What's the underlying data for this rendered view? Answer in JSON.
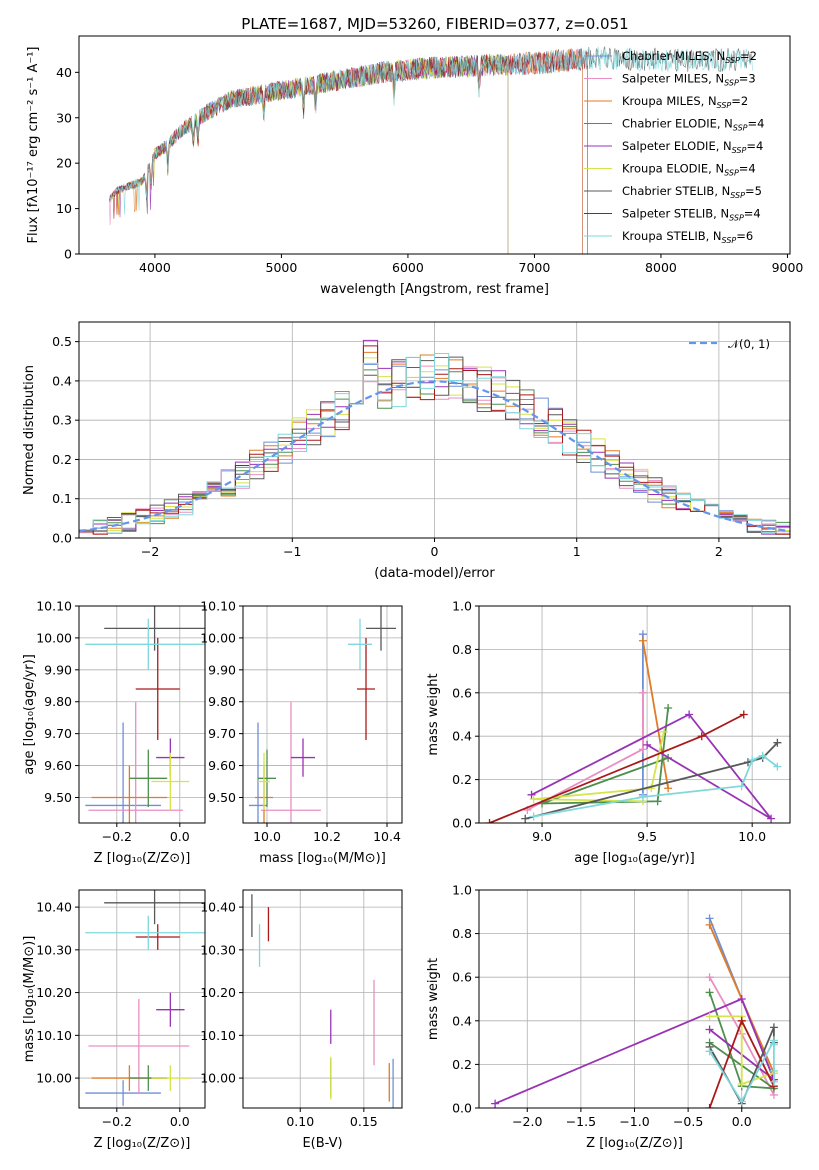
{
  "figure_title": "PLATE=1687, MJD=53260, FIBERID=0377, z=0.051",
  "colors": {
    "Chabrier MILES": "#6f8fd8",
    "Salpeter MILES": "#e98fc3",
    "Kroupa MILES": "#e07b26",
    "Chabrier ELODIE": "#4e8f4e",
    "Salpeter ELODIE": "#9933b5",
    "Kroupa ELODIE": "#d7e34a",
    "Chabrier STELIB": "#595959",
    "Salpeter STELIB": "#aa1a1a",
    "Kroupa STELIB": "#7ed8dc",
    "normal_curve": "#6495ed"
  },
  "chart_data": [
    {
      "id": "spectrum",
      "type": "line",
      "xlabel": "wavelength [Angstrom, rest frame]",
      "ylabel": "Flux [fλ10⁻¹⁷ erg cm⁻² s⁻¹ A⁻¹]",
      "xlim": [
        3400,
        9020
      ],
      "ylim": [
        0,
        48
      ],
      "xticks": [
        4000,
        5000,
        6000,
        7000,
        8000,
        9000
      ],
      "yticks": [
        0,
        10,
        20,
        30,
        40
      ],
      "legend_position": "upper right",
      "legend": [
        {
          "name": "Chabrier MILES",
          "label": "Chabrier MILES, N",
          "sub": "SSP",
          "tail": "=2",
          "color": "#6f8fd8"
        },
        {
          "name": "Salpeter MILES",
          "label": "Salpeter MILES, N",
          "sub": "SSP",
          "tail": "=3",
          "color": "#e98fc3"
        },
        {
          "name": "Kroupa MILES",
          "label": "Kroupa MILES, N",
          "sub": "SSP",
          "tail": "=2",
          "color": "#e07b26"
        },
        {
          "name": "Chabrier ELODIE",
          "label": "Chabrier ELODIE, N",
          "sub": "SSP",
          "tail": "=4",
          "color": "#4e8f4e"
        },
        {
          "name": "Salpeter ELODIE",
          "label": "Salpeter ELODIE, N",
          "sub": "SSP",
          "tail": "=4",
          "color": "#9933b5"
        },
        {
          "name": "Kroupa ELODIE",
          "label": "Kroupa ELODIE, N",
          "sub": "SSP",
          "tail": "=4",
          "color": "#d7e34a"
        },
        {
          "name": "Chabrier STELIB",
          "label": "Chabrier STELIB, N",
          "sub": "SSP",
          "tail": "=5",
          "color": "#595959"
        },
        {
          "name": "Salpeter STELIB",
          "label": "Salpeter STELIB, N",
          "sub": "SSP",
          "tail": "=4",
          "color": "#aa1a1a"
        },
        {
          "name": "Kroupa STELIB",
          "label": "Kroupa STELIB, N",
          "sub": "SSP",
          "tail": "=6",
          "color": "#7ed8dc"
        }
      ],
      "continuum": [
        [
          3640,
          12
        ],
        [
          3700,
          14
        ],
        [
          3800,
          15
        ],
        [
          3900,
          16
        ],
        [
          4000,
          22
        ],
        [
          4100,
          24
        ],
        [
          4200,
          27
        ],
        [
          4400,
          31
        ],
        [
          4600,
          34
        ],
        [
          4800,
          35
        ],
        [
          5000,
          36
        ],
        [
          5200,
          37
        ],
        [
          5400,
          38
        ],
        [
          5600,
          39
        ],
        [
          5800,
          40
        ],
        [
          6000,
          40.5
        ],
        [
          6200,
          41
        ],
        [
          6400,
          41.2
        ],
        [
          6600,
          41.5
        ],
        [
          6800,
          41.8
        ],
        [
          7000,
          42
        ],
        [
          7200,
          42.5
        ],
        [
          7400,
          43
        ],
        [
          7600,
          43.2
        ],
        [
          7800,
          42.8
        ],
        [
          8000,
          42.7
        ],
        [
          8200,
          42.6
        ],
        [
          8400,
          42.7
        ],
        [
          8600,
          42.8
        ],
        [
          8720,
          42.9
        ]
      ],
      "series_ends": {
        "Chabrier MILES": 7380,
        "Salpeter MILES": 7380,
        "Kroupa MILES": 7380,
        "Chabrier ELODIE": 6790,
        "Salpeter ELODIE": 6790,
        "Kroupa ELODIE": 6790,
        "Chabrier STELIB": 8730,
        "Salpeter STELIB": 7420,
        "Kroupa STELIB": 8730
      }
    },
    {
      "id": "residuals",
      "type": "step",
      "xlabel": "(data-model)/error",
      "ylabel": "Normed distribution",
      "xlim": [
        -2.5,
        2.5
      ],
      "ylim": [
        0,
        0.55
      ],
      "xticks": [
        -2,
        -1,
        0,
        1,
        2
      ],
      "yticks": [
        0.0,
        0.1,
        0.2,
        0.3,
        0.4,
        0.5
      ],
      "legend": [
        {
          "label": "𝒩(0, 1)",
          "color": "#6495ed",
          "style": "dashed"
        }
      ],
      "bin_width": 0.1,
      "bins_start": -2.5
    },
    {
      "id": "age-vs-Z",
      "type": "errorbar",
      "xlabel": "Z [log₁₀(Z/Z⊙)]",
      "ylabel": "age  [log₁₀(age/yr)]",
      "xlim": [
        -0.32,
        0.08
      ],
      "ylim": [
        9.42,
        10.1
      ],
      "xticks": [
        -0.2,
        0.0
      ],
      "yticks": [
        9.5,
        9.6,
        9.7,
        9.8,
        9.9,
        10.0,
        10.1
      ],
      "points": [
        {
          "name": "Chabrier MILES",
          "x": -0.18,
          "y": 9.475,
          "xerr": 0.12,
          "yerr": 0.26
        },
        {
          "name": "Salpeter MILES",
          "x": -0.14,
          "y": 9.46,
          "xerr": 0.15,
          "yerr": 0.34
        },
        {
          "name": "Kroupa MILES",
          "x": -0.16,
          "y": 9.5,
          "xerr": 0.12,
          "yerr": 0.1
        },
        {
          "name": "Chabrier ELODIE",
          "x": -0.1,
          "y": 9.56,
          "xerr": 0.06,
          "yerr": 0.09
        },
        {
          "name": "Salpeter ELODIE",
          "x": -0.03,
          "y": 9.625,
          "xerr": 0.045,
          "yerr": 0.06
        },
        {
          "name": "Kroupa ELODIE",
          "x": -0.03,
          "y": 9.55,
          "xerr": 0.06,
          "yerr": 0.09
        },
        {
          "name": "Chabrier STELIB",
          "x": -0.08,
          "y": 10.03,
          "xerr": 0.16,
          "yerr": 0.07
        },
        {
          "name": "Salpeter STELIB",
          "x": -0.07,
          "y": 9.84,
          "xerr": 0.07,
          "yerr": 0.16
        },
        {
          "name": "Kroupa STELIB",
          "x": -0.1,
          "y": 9.98,
          "xerr": 0.2,
          "yerr": 0.08
        }
      ]
    },
    {
      "id": "age-vs-mass",
      "type": "errorbar",
      "xlabel": "mass [log₁₀(M/M⊙)]",
      "ylabel": "",
      "xlim": [
        9.92,
        10.45
      ],
      "ylim": [
        9.42,
        10.1
      ],
      "xticks": [
        10.0,
        10.2,
        10.4
      ],
      "yticks": [
        9.5,
        9.6,
        9.7,
        9.8,
        9.9,
        10.0,
        10.1
      ],
      "points": [
        {
          "name": "Chabrier MILES",
          "x": 9.97,
          "y": 9.475,
          "xerr": 0.03,
          "yerr": 0.26
        },
        {
          "name": "Salpeter MILES",
          "x": 10.08,
          "y": 9.46,
          "xerr": 0.1,
          "yerr": 0.34
        },
        {
          "name": "Kroupa MILES",
          "x": 9.99,
          "y": 9.5,
          "xerr": 0.03,
          "yerr": 0.1
        },
        {
          "name": "Chabrier ELODIE",
          "x": 10.0,
          "y": 9.56,
          "xerr": 0.03,
          "yerr": 0.09
        },
        {
          "name": "Salpeter ELODIE",
          "x": 10.12,
          "y": 9.625,
          "xerr": 0.04,
          "yerr": 0.06
        },
        {
          "name": "Kroupa ELODIE",
          "x": 9.99,
          "y": 9.55,
          "xerr": 0.02,
          "yerr": 0.09
        },
        {
          "name": "Chabrier STELIB",
          "x": 10.38,
          "y": 10.03,
          "xerr": 0.05,
          "yerr": 0.07
        },
        {
          "name": "Salpeter STELIB",
          "x": 10.33,
          "y": 9.84,
          "xerr": 0.03,
          "yerr": 0.16
        },
        {
          "name": "Kroupa STELIB",
          "x": 10.31,
          "y": 9.98,
          "xerr": 0.04,
          "yerr": 0.08
        }
      ]
    },
    {
      "id": "weight-vs-age",
      "type": "line",
      "xlabel": "age  [log₁₀(age/yr)]",
      "ylabel": "mass weight",
      "xlim": [
        8.7,
        10.18
      ],
      "ylim": [
        0,
        1.0
      ],
      "xticks": [
        9.0,
        9.5,
        10.0
      ],
      "yticks": [
        0.0,
        0.2,
        0.4,
        0.6,
        0.8,
        1.0
      ],
      "series": [
        {
          "name": "Chabrier MILES",
          "x": [
            9.48,
            9.48
          ],
          "y": [
            0.87,
            0.13
          ]
        },
        {
          "name": "Salpeter MILES",
          "x": [
            9.48,
            9.48,
            8.93
          ],
          "y": [
            0.6,
            0.34,
            0.06
          ]
        },
        {
          "name": "Kroupa MILES",
          "x": [
            9.48,
            9.6
          ],
          "y": [
            0.84,
            0.16
          ]
        },
        {
          "name": "Chabrier ELODIE",
          "x": [
            9.6,
            9.55,
            9.0,
            9.6
          ],
          "y": [
            0.53,
            0.1,
            0.09,
            0.3
          ]
        },
        {
          "name": "Salpeter ELODIE",
          "x": [
            8.95,
            9.7,
            10.09,
            9.5
          ],
          "y": [
            0.13,
            0.5,
            0.02,
            0.36
          ]
        },
        {
          "name": "Kroupa ELODIE",
          "x": [
            9.58,
            9.52,
            8.96,
            9.48
          ],
          "y": [
            0.42,
            0.16,
            0.11,
            0.1
          ]
        },
        {
          "name": "Chabrier STELIB",
          "x": [
            8.92,
            9.98,
            10.05,
            10.12
          ],
          "y": [
            0.02,
            0.28,
            0.3,
            0.37
          ]
        },
        {
          "name": "Salpeter STELIB",
          "x": [
            8.75,
            9.76,
            9.96
          ],
          "y": [
            0.0,
            0.4,
            0.5
          ]
        },
        {
          "name": "Kroupa STELIB",
          "x": [
            8.96,
            9.48,
            9.95,
            10.0,
            10.05,
            10.12
          ],
          "y": [
            0.03,
            0.12,
            0.17,
            0.29,
            0.31,
            0.26
          ]
        }
      ]
    },
    {
      "id": "mass-vs-Z",
      "type": "errorbar",
      "xlabel": "Z [log₁₀(Z/Z⊙)]",
      "ylabel": "mass [log₁₀(M/M⊙)]",
      "xlim": [
        -0.32,
        0.08
      ],
      "ylim": [
        9.93,
        10.44
      ],
      "xticks": [
        -0.2,
        0.0
      ],
      "yticks": [
        10.0,
        10.1,
        10.2,
        10.3,
        10.4
      ],
      "points": [
        {
          "name": "Chabrier MILES",
          "x": -0.18,
          "y": 9.965,
          "xerr": 0.12,
          "yerr": 0.03
        },
        {
          "name": "Salpeter MILES",
          "x": -0.13,
          "y": 10.075,
          "xerr": 0.16,
          "yerr": 0.11
        },
        {
          "name": "Kroupa MILES",
          "x": -0.16,
          "y": 10.0,
          "xerr": 0.12,
          "yerr": 0.03
        },
        {
          "name": "Chabrier ELODIE",
          "x": -0.1,
          "y": 10.0,
          "xerr": 0.06,
          "yerr": 0.03
        },
        {
          "name": "Salpeter ELODIE",
          "x": -0.03,
          "y": 10.16,
          "xerr": 0.045,
          "yerr": 0.04
        },
        {
          "name": "Kroupa ELODIE",
          "x": -0.03,
          "y": 10.0,
          "xerr": 0.06,
          "yerr": 0.03
        },
        {
          "name": "Chabrier STELIB",
          "x": -0.08,
          "y": 10.41,
          "xerr": 0.16,
          "yerr": 0.05
        },
        {
          "name": "Salpeter STELIB",
          "x": -0.07,
          "y": 10.33,
          "xerr": 0.07,
          "yerr": 0.03
        },
        {
          "name": "Kroupa STELIB",
          "x": -0.1,
          "y": 10.34,
          "xerr": 0.2,
          "yerr": 0.04
        }
      ]
    },
    {
      "id": "mass-vs-EBV",
      "type": "errorbar",
      "xlabel": "E(B-V)",
      "ylabel": "",
      "xlim": [
        0.055,
        0.18
      ],
      "ylim": [
        9.93,
        10.44
      ],
      "xticks": [
        0.1,
        0.15
      ],
      "yticks": [
        10.0,
        10.1,
        10.2,
        10.3,
        10.4
      ],
      "points": [
        {
          "name": "Chabrier MILES",
          "x": 0.173,
          "y": 9.965,
          "xerr": 0,
          "yerr": 0.08
        },
        {
          "name": "Salpeter MILES",
          "x": 0.158,
          "y": 10.13,
          "xerr": 0,
          "yerr": 0.1
        },
        {
          "name": "Kroupa MILES",
          "x": 0.17,
          "y": 9.99,
          "xerr": 0,
          "yerr": 0.045
        },
        {
          "name": "Chabrier ELODIE",
          "x": 0.124,
          "y": 10.0,
          "xerr": 0,
          "yerr": 0.045
        },
        {
          "name": "Salpeter ELODIE",
          "x": 0.124,
          "y": 10.12,
          "xerr": 0,
          "yerr": 0.04
        },
        {
          "name": "Kroupa ELODIE",
          "x": 0.124,
          "y": 10.0,
          "xerr": 0,
          "yerr": 0.05
        },
        {
          "name": "Chabrier STELIB",
          "x": 0.062,
          "y": 10.38,
          "xerr": 0,
          "yerr": 0.05
        },
        {
          "name": "Salpeter STELIB",
          "x": 0.075,
          "y": 10.36,
          "xerr": 0,
          "yerr": 0.04
        },
        {
          "name": "Kroupa STELIB",
          "x": 0.068,
          "y": 10.31,
          "xerr": 0,
          "yerr": 0.05
        }
      ]
    },
    {
      "id": "weight-vs-Z",
      "type": "line",
      "xlabel": "Z [log₁₀(Z/Z⊙)]",
      "ylabel": "mass weight",
      "xlim": [
        -2.45,
        0.45
      ],
      "ylim": [
        0,
        1.0
      ],
      "xticks": [
        -2.0,
        -1.5,
        -1.0,
        -0.5,
        0.0
      ],
      "yticks": [
        0.0,
        0.2,
        0.4,
        0.6,
        0.8,
        1.0
      ],
      "series": [
        {
          "name": "Chabrier MILES",
          "x": [
            -0.3,
            0.3
          ],
          "y": [
            0.87,
            0.13
          ]
        },
        {
          "name": "Salpeter MILES",
          "x": [
            -0.3,
            0.0,
            0.3
          ],
          "y": [
            0.6,
            0.34,
            0.06
          ]
        },
        {
          "name": "Kroupa MILES",
          "x": [
            -0.3,
            0.3
          ],
          "y": [
            0.84,
            0.16
          ]
        },
        {
          "name": "Chabrier ELODIE",
          "x": [
            -0.3,
            0.0,
            0.3,
            -0.3
          ],
          "y": [
            0.53,
            0.1,
            0.09,
            0.3
          ]
        },
        {
          "name": "Salpeter ELODIE",
          "x": [
            -2.3,
            0.0,
            0.3,
            -0.3
          ],
          "y": [
            0.02,
            0.5,
            0.13,
            0.36
          ]
        },
        {
          "name": "Kroupa ELODIE",
          "x": [
            -0.3,
            0.0,
            0.0,
            0.3
          ],
          "y": [
            0.42,
            0.42,
            0.11,
            0.16
          ]
        },
        {
          "name": "Chabrier STELIB",
          "x": [
            -0.3,
            0.0,
            0.3,
            0.3
          ],
          "y": [
            0.28,
            0.02,
            0.37,
            0.3
          ]
        },
        {
          "name": "Salpeter STELIB",
          "x": [
            -0.3,
            0.0,
            0.3
          ],
          "y": [
            0.0,
            0.4,
            0.1
          ]
        },
        {
          "name": "Kroupa STELIB",
          "x": [
            -0.3,
            0.0,
            0.3,
            0.3,
            0.3,
            0.3
          ],
          "y": [
            0.26,
            0.03,
            0.31,
            0.12,
            0.17,
            0.29
          ]
        }
      ]
    }
  ]
}
